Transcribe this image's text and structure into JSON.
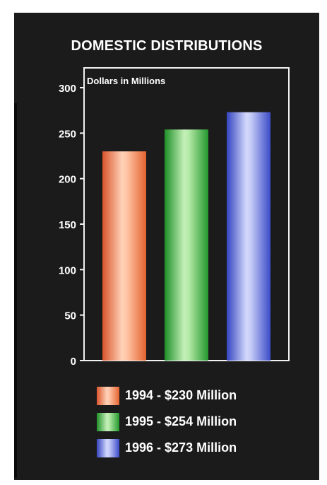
{
  "chart_data": {
    "type": "bar",
    "title": "DOMESTIC DISTRIBUTIONS",
    "ylabel": "Dollars in Millions",
    "xlabel": "",
    "categories": [
      "1994",
      "1995",
      "1996"
    ],
    "values": [
      230,
      254,
      273
    ],
    "ylim": [
      0,
      300
    ],
    "yticks": [
      "0",
      "50",
      "100",
      "150",
      "200",
      "250",
      "300"
    ],
    "grid": false,
    "legend_position": "bottom",
    "legend": [
      {
        "label": "1994 - $230 Million",
        "color": "#ef7b4f"
      },
      {
        "label": "1995 - $254 Million",
        "color": "#38b03c"
      },
      {
        "label": "1996 - $273 Million",
        "color": "#5b6bd8"
      }
    ],
    "colors": {
      "background": "#1c1b1c",
      "text": "#ffffff",
      "frame": "#f2f2f2"
    }
  }
}
